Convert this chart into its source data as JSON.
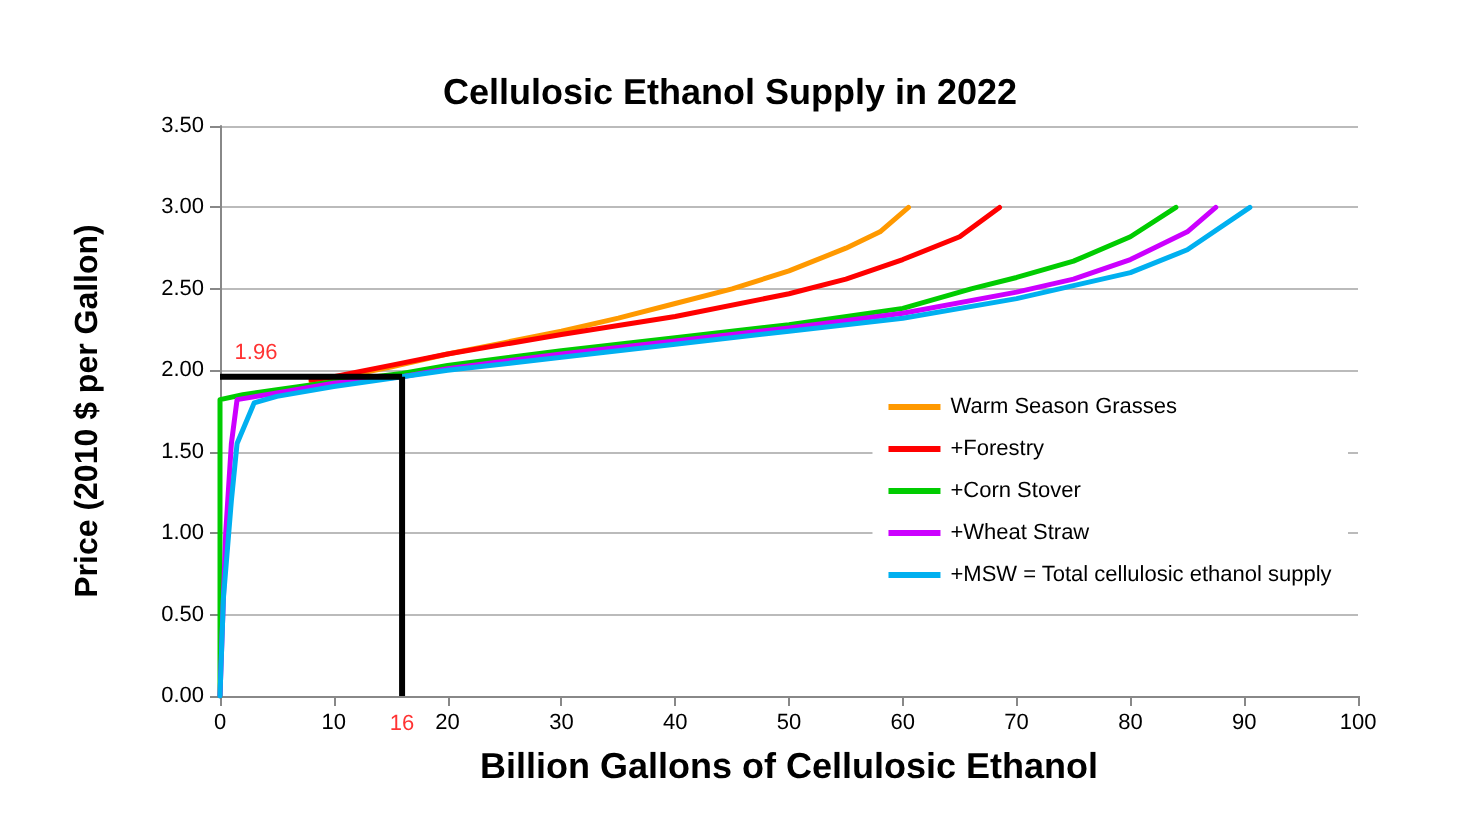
{
  "chart_data": {
    "type": "line",
    "title": "Cellulosic Ethanol Supply in 2022",
    "xlabel": "Billion Gallons of Cellulosic Ethanol",
    "ylabel": "Price (2010 $ per Gallon)",
    "xlim": [
      0,
      100
    ],
    "xticks": [
      0,
      10,
      20,
      30,
      40,
      50,
      60,
      70,
      80,
      90,
      100
    ],
    "ylim": [
      0,
      3.5
    ],
    "yticks": [
      {
        "value": 0,
        "label": "0.00"
      },
      {
        "value": 0.5,
        "label": "0.50"
      },
      {
        "value": 1,
        "label": "1.00"
      },
      {
        "value": 1.5,
        "label": "1.50"
      },
      {
        "value": 2,
        "label": "2.00"
      },
      {
        "value": 2.5,
        "label": "2.50"
      },
      {
        "value": 3,
        "label": "3.00"
      },
      {
        "value": 3.5,
        "label": "3.50"
      }
    ],
    "grid": "y",
    "legend": "right",
    "marker": "none",
    "line_style": "solid",
    "ref_lines": [
      {
        "axis": "y",
        "value": 1.96,
        "label": "1.96",
        "color": "#000000"
      },
      {
        "axis": "x",
        "value": 16,
        "label": "16",
        "color": "#000000"
      }
    ],
    "series": [
      {
        "name": "Warm Season Grasses",
        "color": "#ff9900",
        "x": [
          8,
          10,
          15,
          20,
          25,
          30,
          35,
          40,
          45,
          50,
          55,
          58,
          60.5
        ],
        "values": [
          1.93,
          1.95,
          2.02,
          2.1,
          2.17,
          2.24,
          2.32,
          2.41,
          2.5,
          2.61,
          2.75,
          2.85,
          3.0
        ]
      },
      {
        "name": "+Forestry",
        "color": "#ff0000",
        "x": [
          8,
          10,
          15,
          20,
          30,
          40,
          50,
          55,
          60,
          65,
          68.5
        ],
        "values": [
          1.94,
          1.96,
          2.03,
          2.1,
          2.22,
          2.33,
          2.47,
          2.56,
          2.68,
          2.82,
          3.0
        ]
      },
      {
        "name": "+Corn Stover",
        "color": "#00cc00",
        "x": [
          0,
          0,
          2,
          5,
          10,
          16,
          20,
          30,
          40,
          50,
          60,
          66,
          70,
          75,
          80,
          84
        ],
        "values": [
          0,
          1.82,
          1.85,
          1.88,
          1.93,
          1.98,
          2.03,
          2.12,
          2.2,
          2.28,
          2.38,
          2.5,
          2.57,
          2.67,
          2.82,
          3.0
        ]
      },
      {
        "name": "+Wheat Straw",
        "color": "#cc00ff",
        "x": [
          0,
          0.5,
          1,
          1.5,
          5,
          10,
          16,
          20,
          30,
          40,
          50,
          60,
          70,
          75,
          80,
          85,
          87.5
        ],
        "values": [
          0,
          1.0,
          1.55,
          1.82,
          1.86,
          1.92,
          1.96,
          2.01,
          2.1,
          2.18,
          2.26,
          2.35,
          2.48,
          2.56,
          2.68,
          2.85,
          3.0
        ]
      },
      {
        "name": "+MSW = Total cellulosic ethanol supply",
        "color": "#00b0f0",
        "x": [
          0,
          0.3,
          1,
          1.5,
          3,
          5,
          10,
          16,
          20,
          30,
          40,
          50,
          60,
          70,
          80,
          85,
          90.5
        ],
        "values": [
          0,
          0.6,
          1.2,
          1.55,
          1.8,
          1.84,
          1.9,
          1.96,
          2.0,
          2.08,
          2.16,
          2.24,
          2.32,
          2.44,
          2.6,
          2.74,
          3.0
        ]
      }
    ]
  }
}
